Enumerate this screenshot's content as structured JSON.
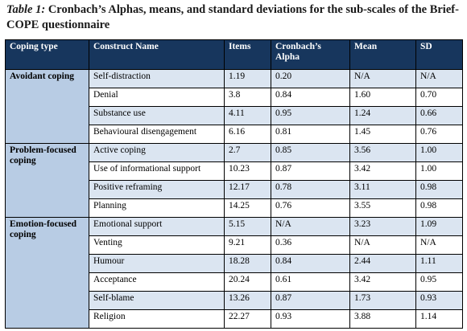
{
  "caption": {
    "label": "Table 1:",
    "text": " Cronbach’s Alphas, means, and standard deviations for the sub-scales of the Brief-COPE questionnaire"
  },
  "table": {
    "headers": [
      "Coping type",
      "Construct Name",
      "Items",
      "Cronbach’s Alpha",
      "Mean",
      "SD"
    ],
    "groups": [
      {
        "name": "Avoidant coping",
        "rows": [
          [
            "Self-distraction",
            "1.19",
            "0.20",
            "N/A",
            "N/A"
          ],
          [
            "Denial",
            "3.8",
            "0.84",
            "1.60",
            "0.70"
          ],
          [
            "Substance use",
            "4.11",
            "0.95",
            "1.24",
            "0.66"
          ],
          [
            "Behavioural disengagement",
            "6.16",
            "0.81",
            "1.45",
            "0.76"
          ]
        ]
      },
      {
        "name": "Problem-focused coping",
        "rows": [
          [
            "Active coping",
            "2.7",
            "0.85",
            "3.56",
            "1.00"
          ],
          [
            "Use of informational support",
            "10.23",
            "0.87",
            "3.42",
            "1.00"
          ],
          [
            "Positive reframing",
            "12.17",
            "0.78",
            "3.11",
            "0.98"
          ],
          [
            "Planning",
            "14.25",
            "0.76",
            "3.55",
            "0.98"
          ]
        ]
      },
      {
        "name": "Emotion-focused coping",
        "rows": [
          [
            "Emotional support",
            "5.15",
            "N/A",
            "3.23",
            "1.09"
          ],
          [
            "Venting",
            "9.21",
            "0.36",
            "N/A",
            "N/A"
          ],
          [
            "Humour",
            "18.28",
            "0.84",
            "2.44",
            "1.11"
          ],
          [
            "Acceptance",
            "20.24",
            "0.61",
            "3.42",
            "0.95"
          ],
          [
            "Self-blame",
            "13.26",
            "0.87",
            "1.73",
            "0.93"
          ],
          [
            "Religion",
            "22.27",
            "0.93",
            "3.88",
            "1.14"
          ]
        ]
      }
    ]
  },
  "colors": {
    "header_bg": "#17365d",
    "group_bg": "#b8cce4",
    "band_light": "#dbe5f1",
    "band_white": "#ffffff"
  }
}
